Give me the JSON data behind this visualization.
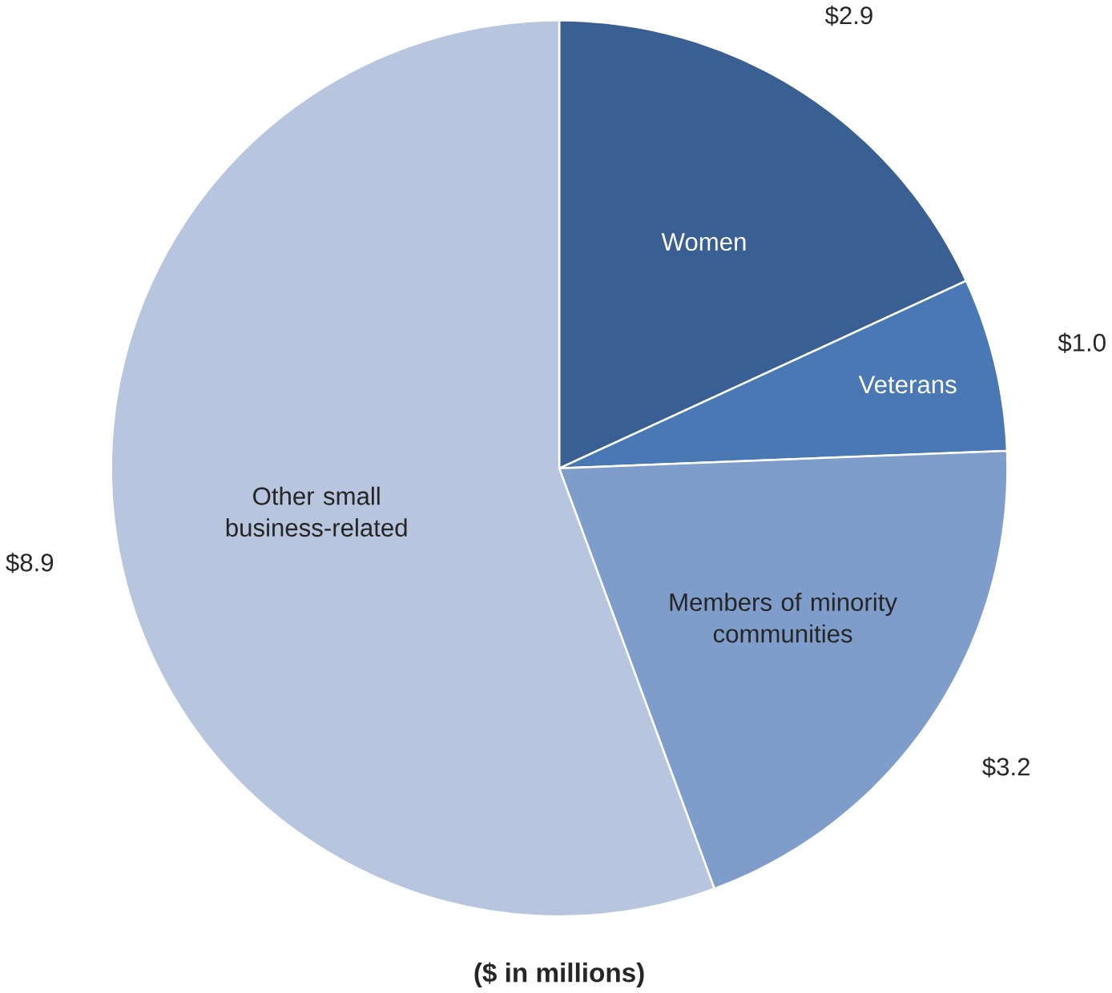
{
  "chart_data": {
    "type": "pie",
    "categories": [
      "Women",
      "Veterans",
      "Members of minority communities",
      "Other small business-related"
    ],
    "values": [
      2.9,
      1.0,
      3.2,
      8.9
    ],
    "colors": [
      "#3a5f93",
      "#4a78b4",
      "#7f9dcb",
      "#b7c5de"
    ],
    "value_labels": [
      "$2.9",
      "$1.0",
      "$3.2",
      "$8.9"
    ],
    "annotations": [
      "($ in millions)"
    ]
  }
}
